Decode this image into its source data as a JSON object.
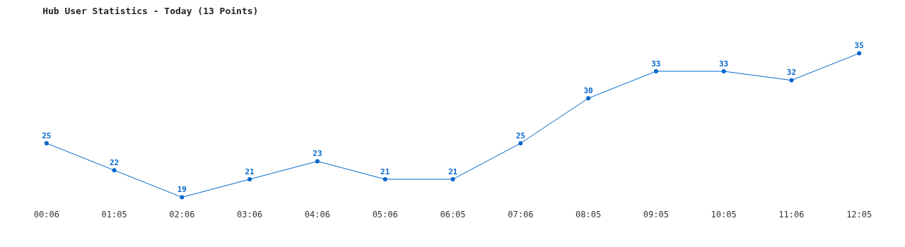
{
  "chart_data": {
    "type": "line",
    "title": "Hub User Statistics - Today (13 Points)",
    "categories": [
      "00:06",
      "01:05",
      "02:06",
      "03:06",
      "04:06",
      "05:06",
      "06:05",
      "07:06",
      "08:05",
      "09:05",
      "10:05",
      "11:06",
      "12:05"
    ],
    "series": [
      {
        "color": "#0066cc",
        "values": [
          25,
          22,
          19,
          21,
          23,
          21,
          21,
          25,
          30,
          33,
          33,
          32,
          35
        ]
      }
    ],
    "data_labels": true,
    "grid": false,
    "legend": false,
    "marker": "circle",
    "line_style": "solid",
    "tick_labels": "x"
  }
}
